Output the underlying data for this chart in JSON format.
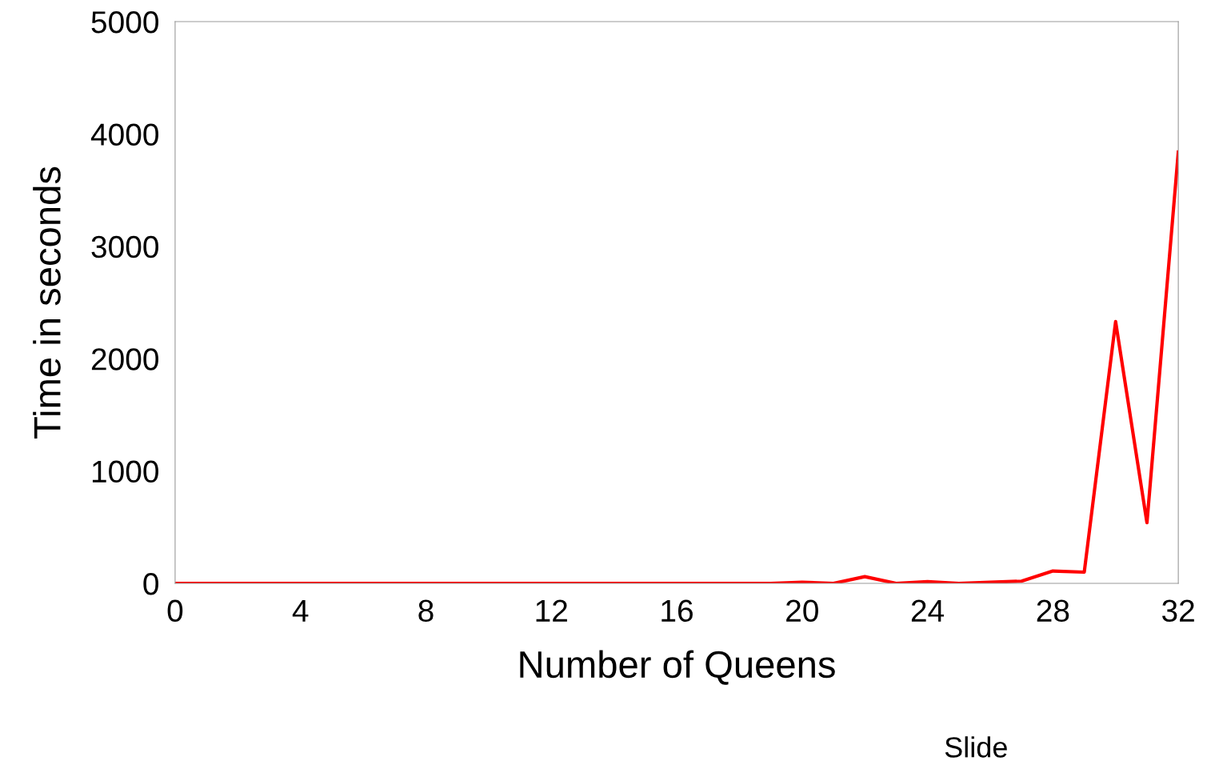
{
  "chart_data": {
    "type": "line",
    "xlabel": "Number of Queens",
    "ylabel": "Time in seconds",
    "x": [
      0,
      1,
      2,
      3,
      4,
      5,
      6,
      7,
      8,
      9,
      10,
      11,
      12,
      13,
      14,
      15,
      16,
      17,
      18,
      19,
      20,
      21,
      22,
      23,
      24,
      25,
      26,
      27,
      28,
      29,
      30,
      31,
      32
    ],
    "series": [
      {
        "color": "#ff0000",
        "values": [
          0,
          0,
          0,
          0,
          0,
          0,
          0,
          0,
          0,
          0,
          0,
          0,
          0,
          0,
          0,
          0,
          0,
          0,
          0,
          0,
          10,
          0,
          60,
          0,
          15,
          0,
          10,
          20,
          110,
          100,
          2330,
          540,
          3840
        ]
      }
    ],
    "xlim": [
      0,
      32
    ],
    "xticks": [
      0,
      4,
      8,
      12,
      16,
      20,
      24,
      28,
      32
    ],
    "ylim": [
      0,
      5000
    ],
    "yticks": [
      0,
      1000,
      2000,
      3000,
      4000,
      5000
    ],
    "grid": false,
    "legend": false,
    "marker": "none",
    "line_style": "solid",
    "annotations": [
      "Slide"
    ]
  }
}
